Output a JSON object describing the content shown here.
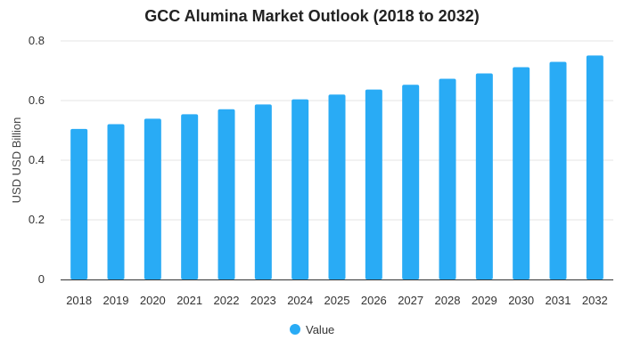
{
  "chart_data": {
    "type": "bar",
    "title": "GCC Alumina Market Outlook (2018 to 2032)",
    "xlabel": "",
    "ylabel": "USD USD Billion",
    "categories": [
      "2018",
      "2019",
      "2020",
      "2021",
      "2022",
      "2023",
      "2024",
      "2025",
      "2026",
      "2027",
      "2028",
      "2029",
      "2030",
      "2031",
      "2032"
    ],
    "series": [
      {
        "name": "Value",
        "color": "#29abf5",
        "values": [
          0.505,
          0.521,
          0.539,
          0.554,
          0.571,
          0.587,
          0.604,
          0.62,
          0.637,
          0.653,
          0.673,
          0.691,
          0.712,
          0.73,
          0.751
        ]
      }
    ],
    "ylim": [
      0,
      0.8
    ],
    "yticks": [
      "0",
      "0.2",
      "0.4",
      "0.6",
      "0.8"
    ],
    "grid": true,
    "legend_position": "bottom-center"
  }
}
